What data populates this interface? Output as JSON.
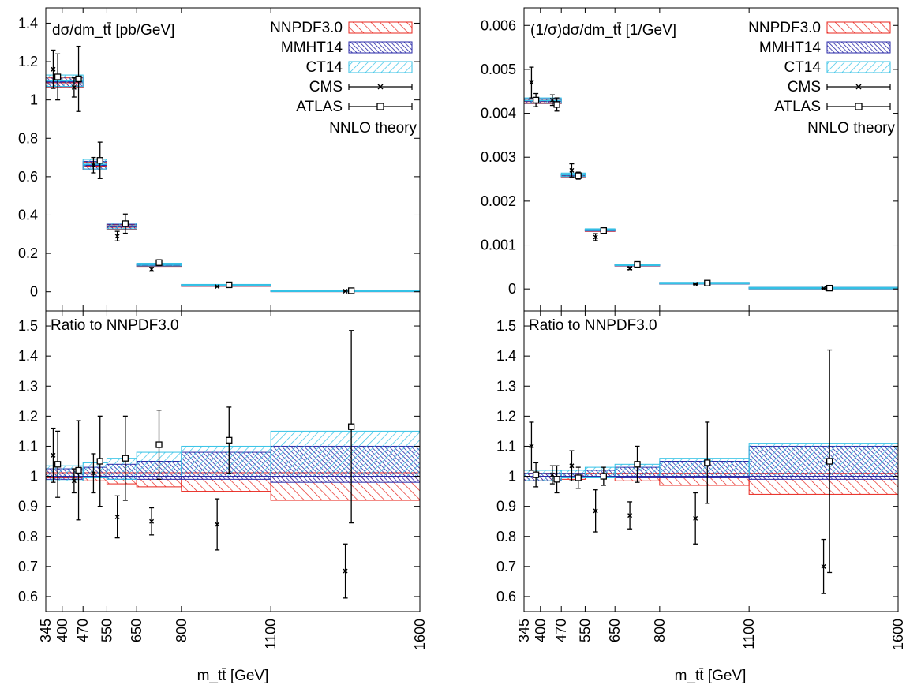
{
  "colors": {
    "nnpdf": "#e8241c",
    "mmht": "#2a2aa8",
    "ct14": "#35c2e6",
    "black": "#000000"
  },
  "chart_data": [
    {
      "type": "line",
      "title": "dσ/dm_tt̄ [pb/GeV]",
      "xlabel": "m_tt̄ [GeV]",
      "ylabel": "",
      "xlim": [
        345,
        1600
      ],
      "ylim": [
        -0.1,
        1.48
      ],
      "yticks": [
        0,
        0.2,
        0.4,
        0.6,
        0.8,
        1,
        1.2,
        1.4
      ],
      "ytick_labels": [
        "0",
        "0.2",
        "0.4",
        "0.6",
        "0.8",
        "1",
        "1.2",
        "1.4"
      ],
      "xticks": [
        345,
        400,
        470,
        550,
        650,
        800,
        1100,
        1600
      ],
      "legend_position": "top-right",
      "legend": [
        "NNPDF3.0",
        "MMHT14",
        "CT14",
        "CMS",
        "ATLAS"
      ],
      "annotation": "NNLO theory",
      "bins": [
        [
          345,
          400
        ],
        [
          400,
          470
        ],
        [
          470,
          550
        ],
        [
          550,
          650
        ],
        [
          650,
          800
        ],
        [
          800,
          1100
        ],
        [
          1100,
          1600
        ]
      ],
      "theory_bins": [
        [
          345,
          470
        ],
        [
          470,
          550
        ],
        [
          550,
          650
        ],
        [
          650,
          800
        ],
        [
          800,
          1100
        ],
        [
          1100,
          1600
        ]
      ],
      "theory": [
        {
          "name": "NNPDF3.0",
          "values": [
            1.09,
            0.655,
            0.337,
            0.138,
            0.032,
            0.0045
          ],
          "errors": [
            0.025,
            0.02,
            0.012,
            0.006,
            0.0015,
            0.0005
          ]
        },
        {
          "name": "MMHT14",
          "values": [
            1.095,
            0.66,
            0.34,
            0.14,
            0.033,
            0.0046
          ],
          "errors": [
            0.025,
            0.02,
            0.012,
            0.006,
            0.0015,
            0.0005
          ]
        },
        {
          "name": "CT14",
          "values": [
            1.1,
            0.665,
            0.343,
            0.142,
            0.034,
            0.0048
          ],
          "errors": [
            0.03,
            0.025,
            0.015,
            0.007,
            0.002,
            0.0006
          ]
        }
      ],
      "data": [
        {
          "name": "CMS",
          "x": [
            370,
            440,
            505,
            585,
            700,
            920,
            1350
          ],
          "y": [
            1.16,
            1.065,
            0.66,
            0.29,
            0.117,
            0.027,
            0.003
          ],
          "err": [
            0.1,
            0.05,
            0.04,
            0.025,
            0.01,
            0.0025,
            0.0005
          ]
        },
        {
          "name": "ATLAS",
          "x": [
            385,
            455,
            527,
            612,
            725,
            960,
            1370
          ],
          "y": [
            1.12,
            1.11,
            0.685,
            0.355,
            0.152,
            0.036,
            0.0052
          ],
          "err": [
            0.12,
            0.17,
            0.095,
            0.05,
            0.015,
            0.003,
            0.002
          ]
        }
      ],
      "ratio_panel": {
        "label": "Ratio to NNPDF3.0",
        "ylim": [
          0.55,
          1.55
        ],
        "yticks": [
          0.6,
          0.7,
          0.8,
          0.9,
          1,
          1.1,
          1.2,
          1.3,
          1.4,
          1.5
        ],
        "ytick_labels": [
          "0.6",
          "0.7",
          "0.8",
          "0.9",
          "1",
          "1.1",
          "1.2",
          "1.3",
          "1.4",
          "1.5"
        ],
        "theory": [
          {
            "name": "NNPDF3.0",
            "low": [
              0.995,
              0.985,
              0.975,
              0.965,
              0.95,
              0.92
            ],
            "high": [
              1.012,
              1.012,
              1.012,
              1.012,
              1.012,
              1.012
            ]
          },
          {
            "name": "MMHT14",
            "low": [
              0.99,
              0.995,
              0.99,
              0.99,
              0.99,
              0.98
            ],
            "high": [
              1.025,
              1.03,
              1.04,
              1.05,
              1.08,
              1.1
            ]
          },
          {
            "name": "CT14",
            "low": [
              0.985,
              0.995,
              0.99,
              1.0,
              1.0,
              1.0
            ],
            "high": [
              1.035,
              1.045,
              1.06,
              1.08,
              1.1,
              1.15
            ]
          }
        ],
        "data": [
          {
            "name": "CMS",
            "x": [
              370,
              440,
              505,
              585,
              700,
              920,
              1350
            ],
            "y": [
              1.07,
              0.985,
              1.01,
              0.865,
              0.85,
              0.84,
              0.685
            ],
            "err": [
              0.09,
              0.04,
              0.065,
              0.07,
              0.045,
              0.085,
              0.09
            ]
          },
          {
            "name": "ATLAS",
            "x": [
              385,
              455,
              527,
              612,
              725,
              960,
              1370
            ],
            "y": [
              1.04,
              1.02,
              1.05,
              1.06,
              1.105,
              1.12,
              1.165
            ],
            "err": [
              0.11,
              0.165,
              0.15,
              0.14,
              0.115,
              0.11,
              0.32
            ]
          }
        ]
      }
    },
    {
      "type": "line",
      "title": "(1/σ)dσ/dm_tt̄ [1/GeV]",
      "xlabel": "m_tt̄ [GeV]",
      "ylabel": "",
      "xlim": [
        345,
        1600
      ],
      "ylim": [
        -0.0005,
        0.0064
      ],
      "yticks": [
        0,
        0.001,
        0.002,
        0.003,
        0.004,
        0.005,
        0.006
      ],
      "ytick_labels": [
        "0",
        "0.001",
        "0.002",
        "0.003",
        "0.004",
        "0.005",
        "0.006"
      ],
      "xticks": [
        345,
        400,
        470,
        550,
        650,
        800,
        1100,
        1600
      ],
      "legend_position": "top-right",
      "legend": [
        "NNPDF3.0",
        "MMHT14",
        "CT14",
        "CMS",
        "ATLAS"
      ],
      "annotation": "NNLO theory",
      "bins": [
        [
          345,
          400
        ],
        [
          400,
          470
        ],
        [
          470,
          550
        ],
        [
          550,
          650
        ],
        [
          650,
          800
        ],
        [
          800,
          1100
        ],
        [
          1100,
          1600
        ]
      ],
      "theory_bins": [
        [
          345,
          470
        ],
        [
          470,
          550
        ],
        [
          550,
          650
        ],
        [
          650,
          800
        ],
        [
          800,
          1100
        ],
        [
          1100,
          1600
        ]
      ],
      "theory": [
        {
          "name": "NNPDF3.0",
          "values": [
            0.00427,
            0.00258,
            0.00133,
            0.00054,
            0.000128,
            1.78e-05
          ],
          "errors": [
            5e-05,
            3e-05,
            2e-05,
            1e-05,
            4e-06,
            1e-06
          ]
        },
        {
          "name": "MMHT14",
          "values": [
            0.00428,
            0.00259,
            0.00134,
            0.000545,
            0.00013,
            1.85e-05
          ],
          "errors": [
            5e-05,
            3e-05,
            2e-05,
            1e-05,
            4e-06,
            1e-06
          ]
        },
        {
          "name": "CT14",
          "values": [
            0.00429,
            0.0026,
            0.00135,
            0.00055,
            0.000133,
            1.9e-05
          ],
          "errors": [
            6e-05,
            4e-05,
            2e-05,
            1e-05,
            5e-06,
            1e-06
          ]
        }
      ],
      "data": [
        {
          "name": "CMS",
          "x": [
            370,
            440,
            505,
            585,
            700,
            920,
            1350
          ],
          "y": [
            0.0047,
            0.0043,
            0.0027,
            0.00118,
            0.00047,
            0.00011,
            1.25e-05
          ],
          "err": [
            0.00035,
            0.00012,
            0.00015,
            8e-05,
            3e-05,
            1e-05,
            2e-06
          ]
        },
        {
          "name": "ATLAS",
          "x": [
            385,
            455,
            527,
            612,
            725,
            960,
            1370
          ],
          "y": [
            0.0043,
            0.0042,
            0.00258,
            0.00133,
            0.00056,
            0.000134,
            1.88e-05
          ],
          "err": [
            0.00015,
            0.00015,
            8e-05,
            4e-05,
            3e-05,
            1e-05,
            7e-06
          ]
        }
      ],
      "ratio_panel": {
        "label": "Ratio to NNPDF3.0",
        "ylim": [
          0.55,
          1.55
        ],
        "yticks": [
          0.6,
          0.7,
          0.8,
          0.9,
          1,
          1.1,
          1.2,
          1.3,
          1.4,
          1.5
        ],
        "ytick_labels": [
          "0.6",
          "0.7",
          "0.8",
          "0.9",
          "1",
          "1.1",
          "1.2",
          "1.3",
          "1.4",
          "1.5"
        ],
        "theory": [
          {
            "name": "NNPDF3.0",
            "low": [
              0.985,
              0.99,
              0.995,
              0.985,
              0.97,
              0.94
            ],
            "high": [
              1.01,
              1.01,
              1.01,
              1.01,
              1.01,
              1.01
            ]
          },
          {
            "name": "MMHT14",
            "low": [
              0.985,
              0.995,
              0.995,
              0.995,
              0.995,
              0.99
            ],
            "high": [
              1.01,
              1.01,
              1.02,
              1.03,
              1.05,
              1.1
            ]
          },
          {
            "name": "CT14",
            "low": [
              0.985,
              0.995,
              0.995,
              1.0,
              1.0,
              1.0
            ],
            "high": [
              1.02,
              1.02,
              1.03,
              1.04,
              1.06,
              1.11
            ]
          }
        ],
        "data": [
          {
            "name": "CMS",
            "x": [
              370,
              440,
              505,
              585,
              700,
              920,
              1350
            ],
            "y": [
              1.1,
              1.005,
              1.035,
              0.885,
              0.87,
              0.86,
              0.7
            ],
            "err": [
              0.08,
              0.03,
              0.05,
              0.07,
              0.045,
              0.085,
              0.09
            ]
          },
          {
            "name": "ATLAS",
            "x": [
              385,
              455,
              527,
              612,
              725,
              960,
              1370
            ],
            "y": [
              1.005,
              0.99,
              0.995,
              1.0,
              1.04,
              1.045,
              1.05
            ],
            "err": [
              0.04,
              0.045,
              0.035,
              0.03,
              0.06,
              0.135,
              0.37
            ]
          }
        ]
      }
    }
  ]
}
